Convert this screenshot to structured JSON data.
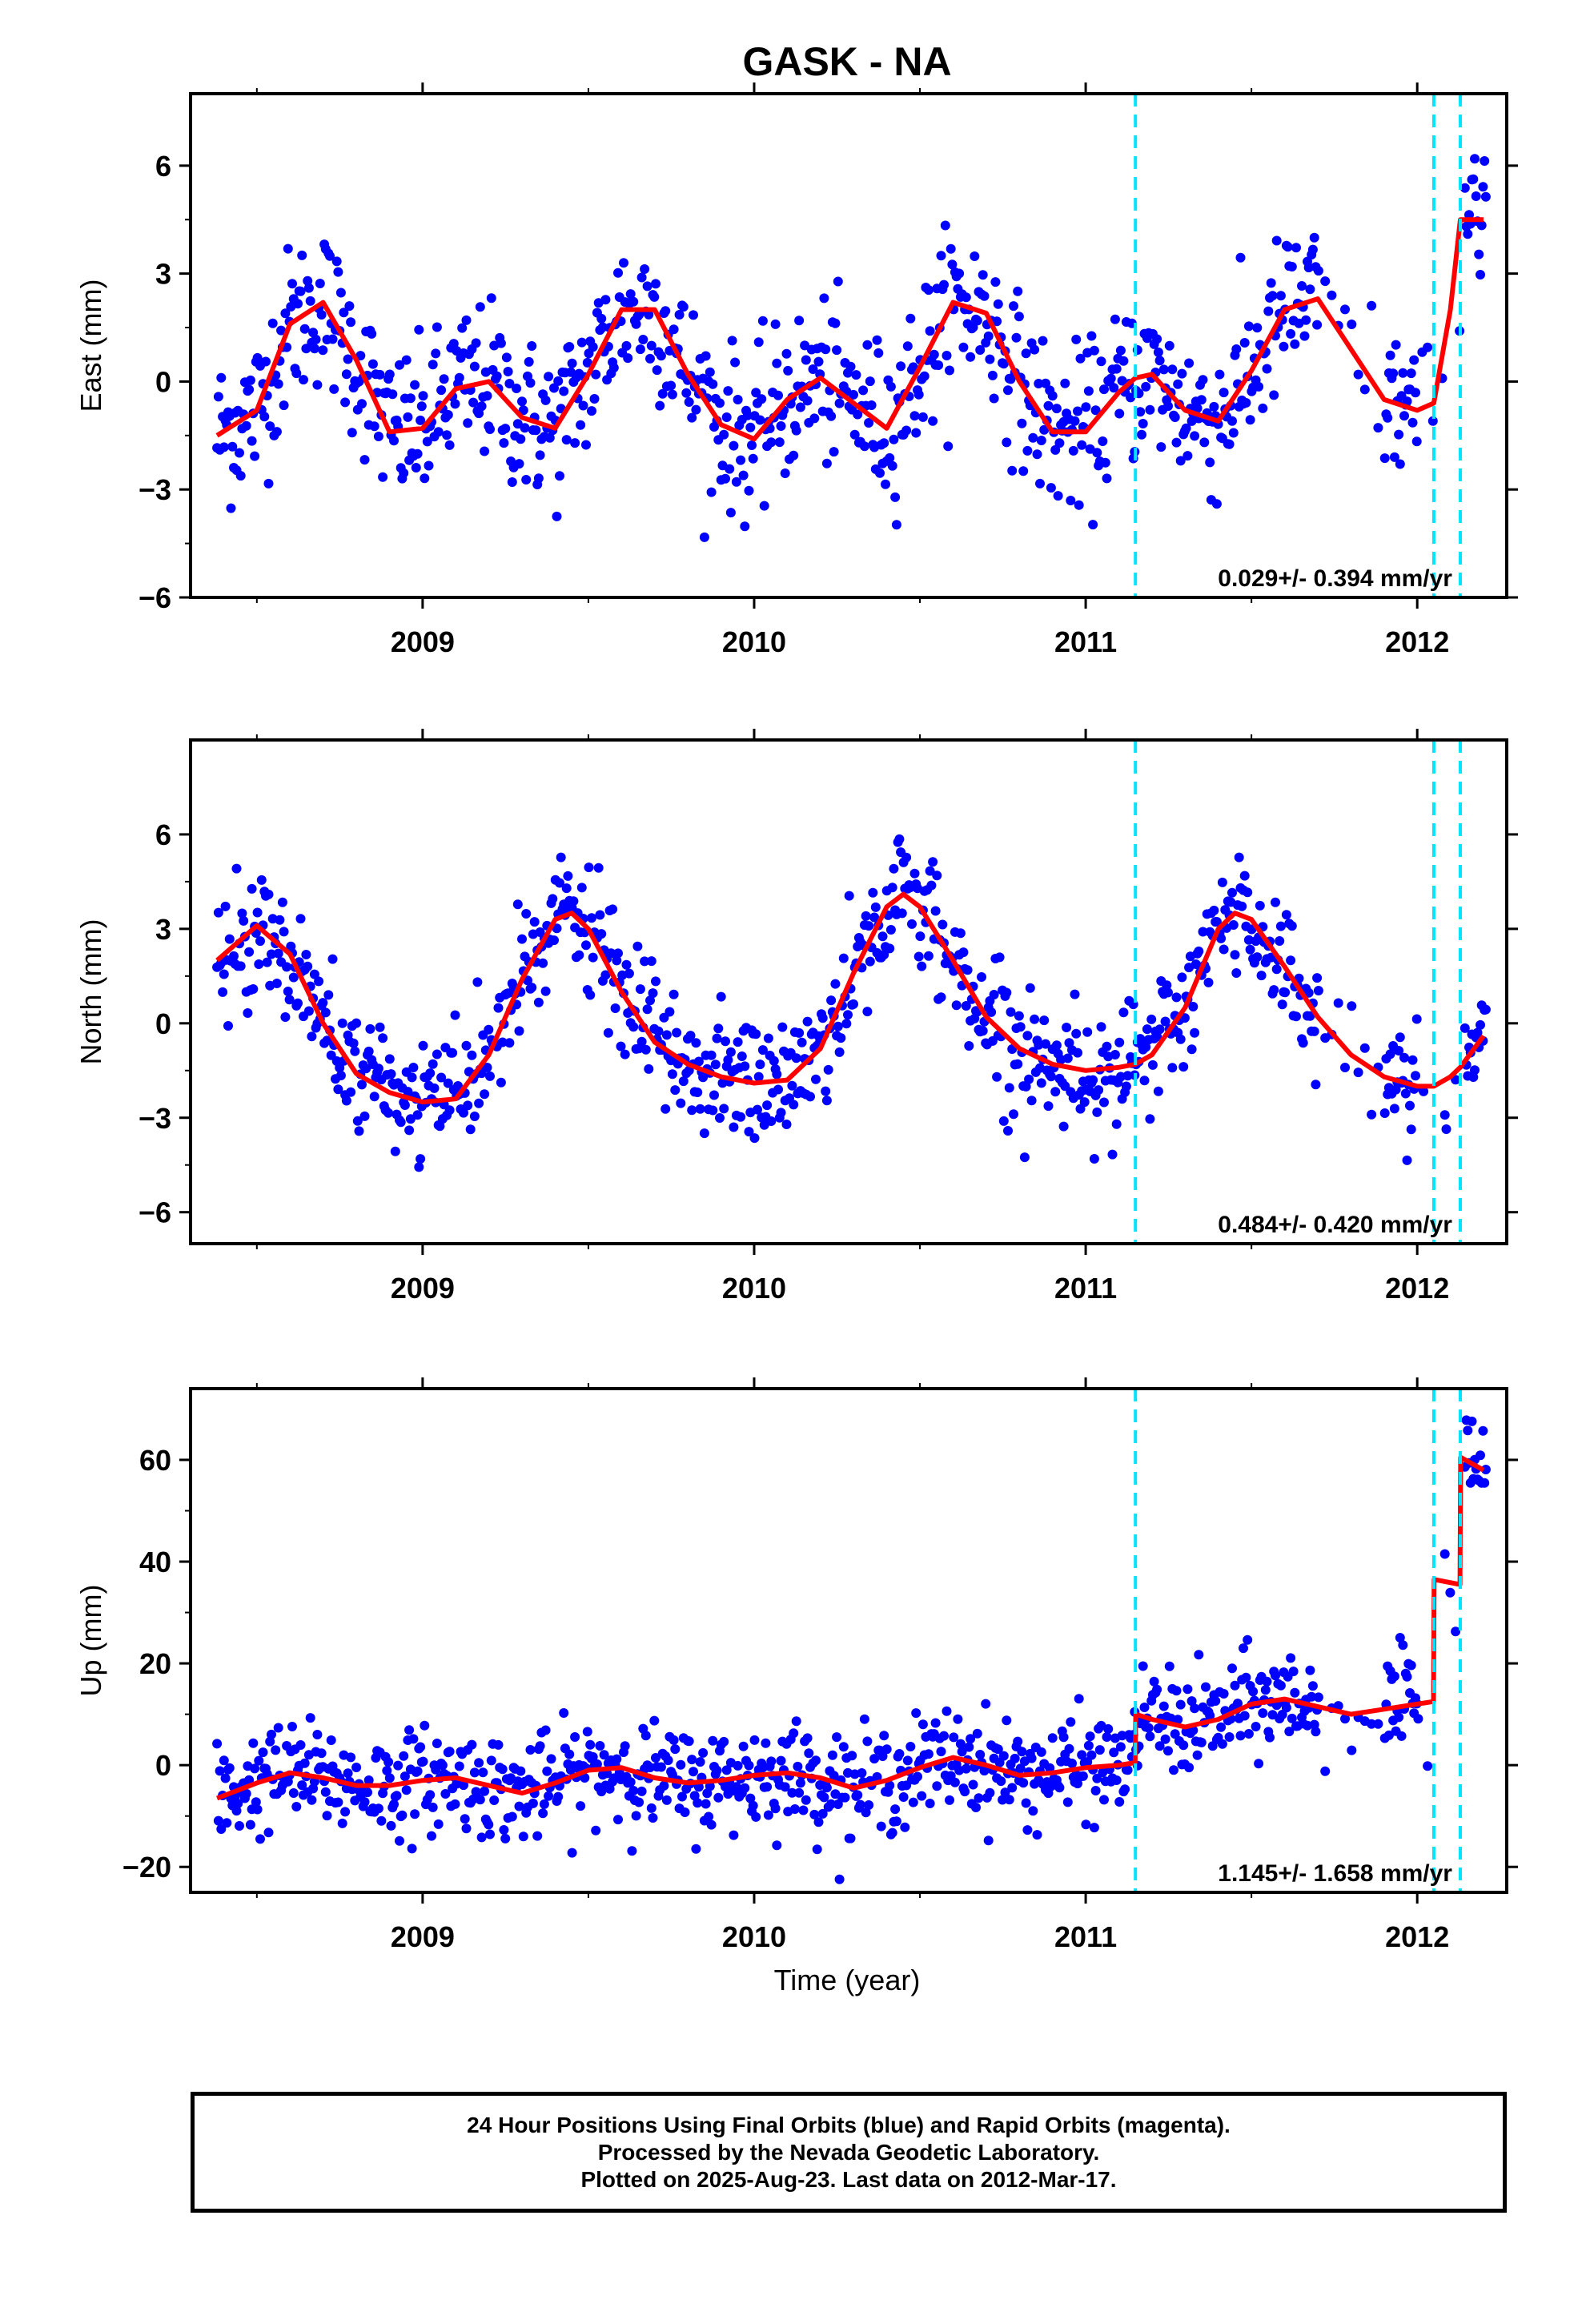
{
  "chart_data": {
    "type": "scatter",
    "title": "GASK - NA",
    "xlabel": "Time (year)",
    "x_ticks": [
      2009,
      2010,
      2011,
      2012
    ],
    "x_range": [
      2008.3,
      2012.27
    ],
    "steps": [
      2011.15,
      2012.05,
      2012.13
    ],
    "panels": [
      {
        "name": "east",
        "ylabel": "East (mm)",
        "ylim": [
          -6,
          8
        ],
        "y_ticks": [
          -6,
          -3,
          0,
          3,
          6
        ],
        "rate_label": "0.029+/- 0.394 mm/yr",
        "fit": {
          "x": [
            2008.38,
            2008.5,
            2008.6,
            2008.7,
            2008.8,
            2008.9,
            2009.0,
            2009.1,
            2009.2,
            2009.3,
            2009.4,
            2009.5,
            2009.6,
            2009.7,
            2009.8,
            2009.9,
            2010.0,
            2010.1,
            2010.2,
            2010.3,
            2010.4,
            2010.5,
            2010.6,
            2010.7,
            2010.8,
            2010.9,
            2011.0,
            2011.1,
            2011.15,
            2011.2,
            2011.3,
            2011.4,
            2011.5,
            2011.6,
            2011.7,
            2011.8,
            2011.9,
            2012.0,
            2012.05,
            2012.1,
            2012.13,
            2012.2
          ],
          "y": [
            -1.5,
            -0.8,
            1.6,
            2.2,
            0.6,
            -1.4,
            -1.3,
            -0.2,
            0.0,
            -1.0,
            -1.3,
            0.2,
            2.0,
            2.0,
            0.2,
            -1.2,
            -1.6,
            -0.5,
            0.1,
            -0.6,
            -1.3,
            0.4,
            2.2,
            1.9,
            0.0,
            -1.4,
            -1.4,
            -0.3,
            0.1,
            0.2,
            -0.8,
            -1.1,
            0.3,
            2.0,
            2.3,
            0.9,
            -0.5,
            -0.8,
            -0.6,
            2.0,
            4.5,
            4.5
          ]
        },
        "scatter": {
          "amp": 2.0,
          "phase": -0.49,
          "noise": 1.1,
          "offset": 0.0,
          "post1": 0.3,
          "post2": 1.0,
          "post3": 2.5,
          "min_noise_count": 120
        }
      },
      {
        "name": "north",
        "ylabel": "North (mm)",
        "ylim": [
          -7,
          9
        ],
        "y_ticks": [
          -6,
          -3,
          0,
          3,
          6
        ],
        "rate_label": "0.484+/- 0.420 mm/yr",
        "fit": {
          "x": [
            2008.38,
            2008.5,
            2008.6,
            2008.7,
            2008.8,
            2008.9,
            2009.0,
            2009.1,
            2009.2,
            2009.3,
            2009.4,
            2009.45,
            2009.5,
            2009.6,
            2009.7,
            2009.8,
            2009.9,
            2010.0,
            2010.1,
            2010.2,
            2010.3,
            2010.4,
            2010.45,
            2010.5,
            2010.6,
            2010.7,
            2010.8,
            2010.9,
            2011.0,
            2011.1,
            2011.15,
            2011.2,
            2011.3,
            2011.4,
            2011.45,
            2011.5,
            2011.6,
            2011.7,
            2011.8,
            2011.9,
            2012.0,
            2012.05,
            2012.1,
            2012.13,
            2012.2
          ],
          "y": [
            2.0,
            3.1,
            2.2,
            0.0,
            -1.6,
            -2.2,
            -2.5,
            -2.4,
            -1.0,
            1.4,
            3.3,
            3.5,
            3.0,
            1.0,
            -0.6,
            -1.3,
            -1.7,
            -1.9,
            -1.8,
            -0.8,
            1.6,
            3.7,
            4.1,
            3.7,
            2.0,
            0.2,
            -0.8,
            -1.3,
            -1.5,
            -1.4,
            -1.3,
            -1.0,
            0.5,
            3.0,
            3.5,
            3.3,
            1.8,
            0.2,
            -1.0,
            -1.7,
            -2.0,
            -2.0,
            -1.7,
            -1.4,
            -0.4
          ]
        },
        "scatter": {
          "amp": 3.0,
          "phase": 0.05,
          "noise": 1.0,
          "offset": 0.0,
          "post1": 0.0,
          "post2": 0.0,
          "post3": 0.0,
          "min_noise_count": 0
        }
      },
      {
        "name": "up",
        "ylabel": "Up (mm)",
        "ylim": [
          -25,
          74
        ],
        "y_ticks": [
          -20,
          0,
          20,
          40,
          60
        ],
        "rate_label": "1.145+/- 1.658 mm/yr",
        "fit": {
          "x": [
            2008.38,
            2008.5,
            2008.6,
            2008.7,
            2008.8,
            2008.9,
            2009.0,
            2009.1,
            2009.2,
            2009.3,
            2009.4,
            2009.5,
            2009.6,
            2009.7,
            2009.8,
            2009.9,
            2010.0,
            2010.1,
            2010.2,
            2010.3,
            2010.4,
            2010.5,
            2010.6,
            2010.7,
            2010.8,
            2010.9,
            2011.0,
            2011.1,
            2011.149,
            2011.151,
            2011.2,
            2011.3,
            2011.4,
            2011.5,
            2011.6,
            2011.7,
            2011.8,
            2011.9,
            2012.0,
            2012.049,
            2012.051,
            2012.129,
            2012.131,
            2012.2
          ],
          "y": [
            -6.5,
            -3.5,
            -1.5,
            -2.5,
            -4.0,
            -4.0,
            -3.0,
            -2.5,
            -4.0,
            -5.5,
            -3.5,
            -1.0,
            -0.5,
            -2.5,
            -3.5,
            -3.0,
            -2.0,
            -1.5,
            -2.5,
            -4.5,
            -3.0,
            -0.5,
            1.5,
            0.0,
            -2.0,
            -1.5,
            -0.5,
            0.0,
            0.5,
            10.0,
            9.0,
            7.5,
            9.0,
            12.0,
            13.0,
            11.5,
            10.0,
            11.0,
            12.0,
            12.5,
            36.5,
            35.5,
            60.5,
            58.0
          ]
        },
        "scatter": {
          "amp": 2.5,
          "phase": 0.3,
          "noise": 5.0,
          "offset": 0.0,
          "post1": 10.5,
          "post2": 35.0,
          "post3": 59.0,
          "min_noise_count": 0
        }
      }
    ]
  },
  "caption": {
    "line1": "24 Hour Positions Using Final Orbits (blue) and Rapid Orbits (magenta).",
    "line2": "Processed by the Nevada Geodetic Laboratory.",
    "line3": "Plotted on 2025-Aug-23. Last data on 2012-Mar-17."
  },
  "colors": {
    "points": "#0000ff",
    "fit": "#ff0000",
    "steps": "#00e5ff",
    "frame": "#000000"
  }
}
